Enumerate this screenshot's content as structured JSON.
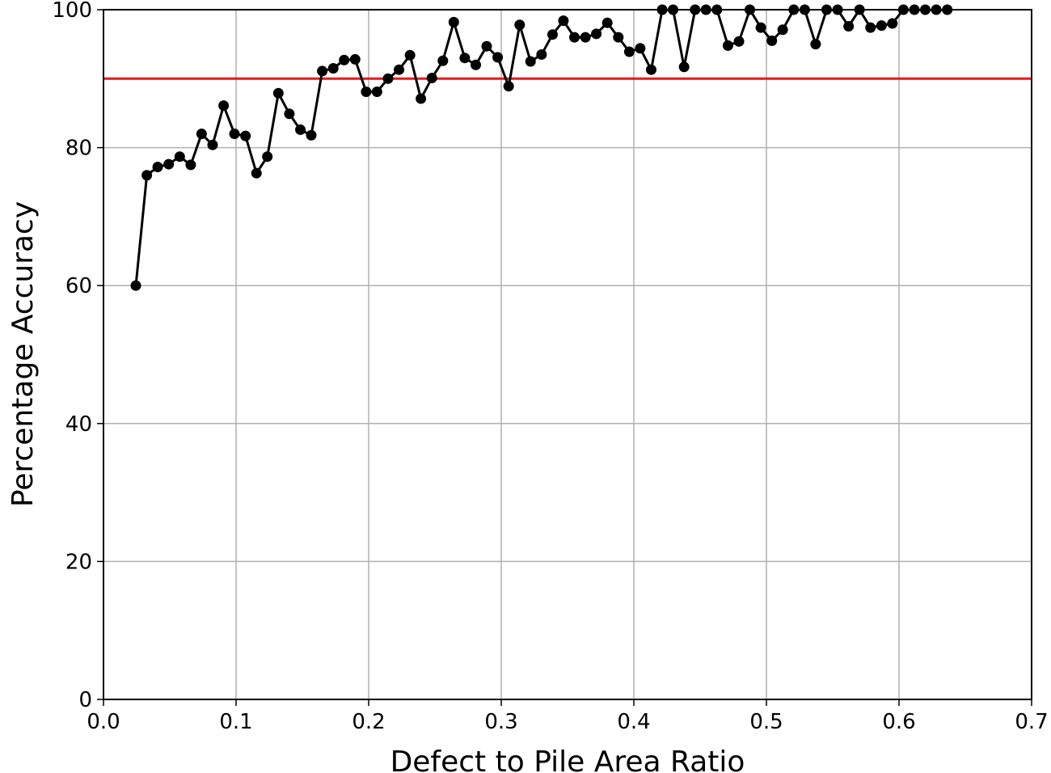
{
  "chart_data": {
    "type": "line",
    "xlabel": "Defect to Pile Area Ratio",
    "ylabel": "Percentage Accuracy",
    "x": [
      0.0244,
      0.0327,
      0.0409,
      0.0492,
      0.0575,
      0.0658,
      0.074,
      0.0823,
      0.0906,
      0.0988,
      0.1071,
      0.1154,
      0.1236,
      0.1319,
      0.1402,
      0.1485,
      0.1567,
      0.165,
      0.1733,
      0.1815,
      0.1898,
      0.1981,
      0.2063,
      0.2146,
      0.2229,
      0.2312,
      0.2394,
      0.2477,
      0.256,
      0.2642,
      0.2725,
      0.2808,
      0.289,
      0.2973,
      0.3056,
      0.3139,
      0.3221,
      0.3304,
      0.3387,
      0.3469,
      0.3552,
      0.3635,
      0.3717,
      0.38,
      0.3883,
      0.3966,
      0.4048,
      0.4131,
      0.4214,
      0.4296,
      0.4379,
      0.4462,
      0.4544,
      0.4627,
      0.471,
      0.4793,
      0.4875,
      0.4958,
      0.5041,
      0.5123,
      0.5206,
      0.5289,
      0.5371,
      0.5454,
      0.5537,
      0.562,
      0.5702,
      0.5785,
      0.5868,
      0.595,
      0.6033,
      0.6116,
      0.6198,
      0.6281,
      0.6364
    ],
    "series": [
      {
        "color": "#000000",
        "values": [
          60,
          76,
          77.2,
          77.6,
          78.7,
          77.5,
          82,
          80.4,
          86.1,
          82,
          81.7,
          76.3,
          78.7,
          87.9,
          84.9,
          82.6,
          81.8,
          91.1,
          91.5,
          92.7,
          92.8,
          88.1,
          88.1,
          90,
          91.3,
          93.4,
          87.1,
          90.1,
          92.6,
          98.2,
          93,
          92,
          94.7,
          93.1,
          88.9,
          97.8,
          92.5,
          93.5,
          96.4,
          98.4,
          96,
          96,
          96.5,
          98.1,
          96,
          93.9,
          94.4,
          91.3,
          100,
          100,
          91.7,
          100,
          100,
          100,
          94.8,
          95.4,
          100,
          97.4,
          95.5,
          97.1,
          100,
          100,
          95,
          100,
          100,
          97.6,
          100,
          97.4,
          97.7,
          98,
          100,
          100,
          100,
          100,
          100
        ]
      }
    ],
    "reference_line": {
      "value": 90,
      "color": "#e41a1c"
    },
    "xlim": [
      0,
      0.7
    ],
    "xticks": [
      {
        "value": 0,
        "label": "0.0"
      },
      0.1,
      0.2,
      0.3,
      0.4,
      0.5,
      0.6,
      0.7
    ],
    "ylim": [
      0,
      100
    ],
    "yticks": [
      0,
      20,
      40,
      60,
      80,
      100
    ],
    "grid": true
  }
}
